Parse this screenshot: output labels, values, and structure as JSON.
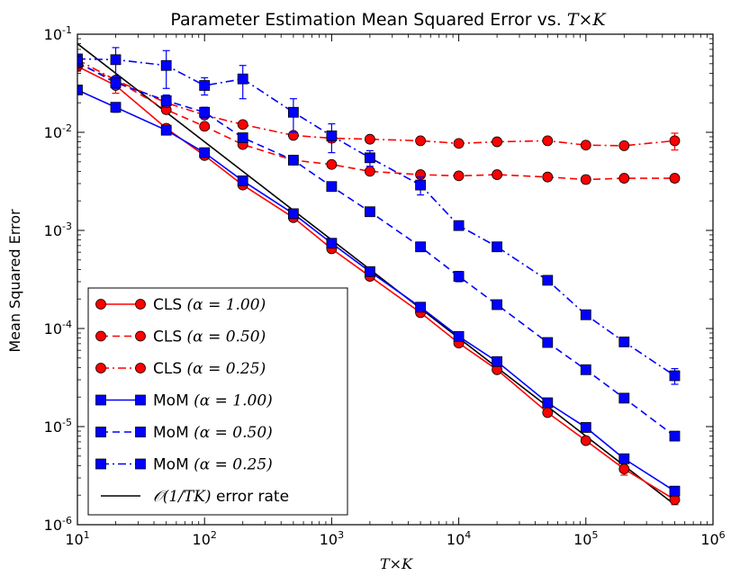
{
  "chart_data": {
    "type": "line",
    "title": "Parameter Estimation Mean Squared Error vs. ",
    "title_math": "T×K",
    "xlabel": "T×K",
    "ylabel": "Mean Squared Error",
    "xscale": "log",
    "yscale": "log",
    "xlim": [
      10,
      1000000
    ],
    "ylim": [
      1e-06,
      0.1
    ],
    "grid": false,
    "legend_position": "lower-left",
    "x_ticks": [
      {
        "value": 10,
        "base": "10",
        "exp": "1"
      },
      {
        "value": 100,
        "base": "10",
        "exp": "2"
      },
      {
        "value": 1000,
        "base": "10",
        "exp": "3"
      },
      {
        "value": 10000,
        "base": "10",
        "exp": "4"
      },
      {
        "value": 100000,
        "base": "10",
        "exp": "5"
      },
      {
        "value": 1000000,
        "base": "10",
        "exp": "6"
      }
    ],
    "y_ticks": [
      {
        "value": 1e-06,
        "base": "10",
        "exp": "-6"
      },
      {
        "value": 1e-05,
        "base": "10",
        "exp": "-5"
      },
      {
        "value": 0.0001,
        "base": "10",
        "exp": "-4"
      },
      {
        "value": 0.001,
        "base": "10",
        "exp": "-3"
      },
      {
        "value": 0.01,
        "base": "10",
        "exp": "-2"
      },
      {
        "value": 0.1,
        "base": "10",
        "exp": "-1"
      }
    ],
    "x": [
      10,
      20,
      50,
      100,
      200,
      500,
      1000,
      2000,
      5000,
      10000,
      20000,
      50000,
      100000,
      200000,
      500000
    ],
    "series": [
      {
        "name": "CLS",
        "param": "(α = 1.00)",
        "color": "#ff0000",
        "marker": "circle",
        "dash": "solid",
        "values": [
          0.047,
          0.03,
          0.011,
          0.0058,
          0.0029,
          0.00135,
          0.00065,
          0.00034,
          0.000145,
          7.1e-05,
          3.8e-05,
          1.39e-05,
          7.2e-06,
          3.7e-06,
          1.8e-06
        ],
        "err": [
          0.005,
          0.005,
          0.001,
          0.0004,
          0.0002,
          8e-05,
          4e-05,
          2e-05,
          8e-06,
          4e-06,
          2e-06,
          8e-07,
          4e-07,
          5e-07,
          2e-07
        ]
      },
      {
        "name": "CLS",
        "param": "(α = 0.50)",
        "color": "#ff0000",
        "marker": "circle",
        "dash": "dashed",
        "values": [
          0.05,
          0.034,
          0.017,
          0.0115,
          0.0075,
          0.0052,
          0.0047,
          0.004,
          0.0037,
          0.0036,
          0.0037,
          0.0035,
          0.0033,
          0.0034,
          0.0034
        ],
        "err": [
          0.004,
          0.003,
          0.0015,
          0.001,
          0.0005,
          0.0004,
          0.0003,
          0.0003,
          0.0003,
          0.0002,
          0.0002,
          0.0002,
          0.0003,
          0.0002,
          0.0003
        ]
      },
      {
        "name": "CLS",
        "param": "(α = 0.25)",
        "color": "#ff0000",
        "marker": "circle",
        "dash": "dashdot",
        "values": [
          0.055,
          0.034,
          0.02,
          0.015,
          0.012,
          0.0093,
          0.0087,
          0.0085,
          0.0082,
          0.0077,
          0.008,
          0.0082,
          0.0074,
          0.0073,
          0.0082
        ],
        "err": [
          0.004,
          0.003,
          0.002,
          0.001,
          0.0008,
          0.0006,
          0.0008,
          0.0005,
          0.0005,
          0.0004,
          0.0004,
          0.0005,
          0.0005,
          0.0005,
          0.0016
        ]
      },
      {
        "name": "MoM",
        "param": "(α = 1.00)",
        "color": "#0000ff",
        "marker": "square",
        "dash": "solid",
        "values": [
          0.027,
          0.018,
          0.0105,
          0.0062,
          0.0032,
          0.00148,
          0.00074,
          0.00038,
          0.000165,
          8.3e-05,
          4.6e-05,
          1.75e-05,
          9.8e-06,
          4.7e-06,
          2.2e-06
        ],
        "err": [
          0.002,
          0.002,
          0.001,
          0.0005,
          0.0002,
          0.0001,
          5e-05,
          2e-05,
          1e-05,
          5e-06,
          3e-06,
          1e-06,
          6e-07,
          3e-07,
          2e-07
        ]
      },
      {
        "name": "MoM",
        "param": "(α = 0.50)",
        "color": "#0000ff",
        "marker": "square",
        "dash": "dashed",
        "values": [
          0.052,
          0.032,
          0.021,
          0.016,
          0.0088,
          0.0052,
          0.0028,
          0.00155,
          0.00068,
          0.00034,
          0.000175,
          7.2e-05,
          3.8e-05,
          1.95e-05,
          8e-06
        ],
        "err": [
          0.005,
          0.004,
          0.003,
          0.002,
          0.0008,
          0.0004,
          0.0002,
          0.00015,
          5e-05,
          4e-05,
          1e-05,
          5e-06,
          3e-06,
          1e-06,
          5e-07
        ]
      },
      {
        "name": "MoM",
        "param": "(α = 0.25)",
        "color": "#0000ff",
        "marker": "square",
        "dash": "dashdot",
        "values": [
          0.056,
          0.055,
          0.048,
          0.03,
          0.035,
          0.016,
          0.0092,
          0.0055,
          0.0029,
          0.00112,
          0.00068,
          0.00031,
          0.000138,
          7.3e-05,
          3.3e-05
        ],
        "err": [
          0.006,
          0.018,
          0.02,
          0.006,
          0.013,
          0.006,
          0.003,
          0.001,
          0.0006,
          0.0001,
          5e-05,
          2e-05,
          1e-05,
          5e-06,
          6e-06
        ]
      }
    ],
    "reference_line": {
      "label": "error rate",
      "math": "𝒪(1/TK)",
      "color": "#000000",
      "x": [
        10,
        500000
      ],
      "values": [
        0.08,
        1.6e-06
      ]
    }
  }
}
